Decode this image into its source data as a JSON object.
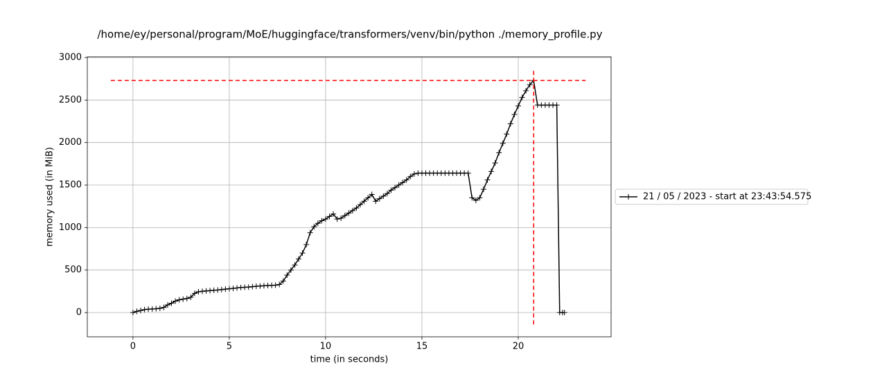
{
  "chart_data": {
    "type": "line",
    "title": "/home/ey/personal/program/MoE/huggingface/transformers/venv/bin/python ./memory_profile.py",
    "x_label": "time (in seconds)",
    "y_label": "memory used (in MiB)",
    "x": [
      0,
      0.2,
      0.4,
      0.6,
      0.8,
      1,
      1.2,
      1.4,
      1.6,
      1.8,
      2,
      2.2,
      2.4,
      2.6,
      2.8,
      3,
      3.2,
      3.4,
      3.6,
      3.8,
      4,
      4.2,
      4.4,
      4.6,
      4.8,
      5,
      5.2,
      5.4,
      5.6,
      5.8,
      6,
      6.2,
      6.4,
      6.6,
      6.8,
      7,
      7.2,
      7.4,
      7.6,
      7.8,
      8,
      8.2,
      8.4,
      8.6,
      8.8,
      9,
      9.2,
      9.4,
      9.6,
      9.8,
      10,
      10.2,
      10.4,
      10.6,
      10.8,
      11,
      11.2,
      11.4,
      11.6,
      11.8,
      12,
      12.2,
      12.4,
      12.6,
      12.8,
      13,
      13.2,
      13.4,
      13.6,
      13.8,
      14,
      14.2,
      14.4,
      14.6,
      14.8,
      15,
      15.2,
      15.4,
      15.6,
      15.8,
      16,
      16.2,
      16.4,
      16.6,
      16.8,
      17,
      17.2,
      17.4,
      17.6,
      17.8,
      18,
      18.2,
      18.4,
      18.6,
      18.8,
      19,
      19.2,
      19.4,
      19.6,
      19.8,
      20,
      20.2,
      20.4,
      20.6,
      20.8,
      21,
      21.2,
      21.4,
      21.6,
      21.8,
      22,
      22.15,
      22.3,
      22.4
    ],
    "series": [
      {
        "name": "21 / 05 / 2023 - start at 23:43:54.575",
        "color": "#000000",
        "marker": "+",
        "values": [
          0,
          15,
          25,
          35,
          40,
          42,
          45,
          50,
          60,
          90,
          110,
          135,
          150,
          158,
          165,
          180,
          225,
          245,
          250,
          255,
          258,
          262,
          265,
          270,
          275,
          280,
          285,
          290,
          295,
          298,
          300,
          305,
          310,
          312,
          315,
          318,
          320,
          322,
          330,
          370,
          440,
          500,
          560,
          630,
          700,
          800,
          940,
          1010,
          1050,
          1080,
          1100,
          1130,
          1160,
          1100,
          1110,
          1140,
          1170,
          1200,
          1230,
          1270,
          1310,
          1350,
          1390,
          1310,
          1340,
          1370,
          1400,
          1440,
          1470,
          1500,
          1530,
          1560,
          1600,
          1630,
          1640,
          1640,
          1640,
          1640,
          1640,
          1640,
          1640,
          1640,
          1640,
          1640,
          1640,
          1640,
          1640,
          1640,
          1350,
          1320,
          1350,
          1450,
          1560,
          1660,
          1760,
          1880,
          1990,
          2100,
          2220,
          2330,
          2430,
          2530,
          2610,
          2680,
          2730,
          2440,
          2440,
          2440,
          2440,
          2440,
          2440,
          0,
          0,
          0
        ]
      }
    ],
    "reference_lines": [
      {
        "orientation": "horizontal",
        "value": 2730,
        "from": -1.15,
        "to": 23.5,
        "color": "#ff0000"
      },
      {
        "orientation": "vertical",
        "value": 20.8,
        "from": -140,
        "to": 2870,
        "color": "#ff0000"
      }
    ],
    "xlim": [
      -2.37,
      24.82
    ],
    "ylim": [
      -285,
      3008
    ],
    "xticks": [
      0,
      5,
      10,
      15,
      20
    ],
    "yticks": [
      0,
      500,
      1000,
      1500,
      2000,
      2500,
      3000
    ],
    "grid": true,
    "legend": "outside right"
  }
}
